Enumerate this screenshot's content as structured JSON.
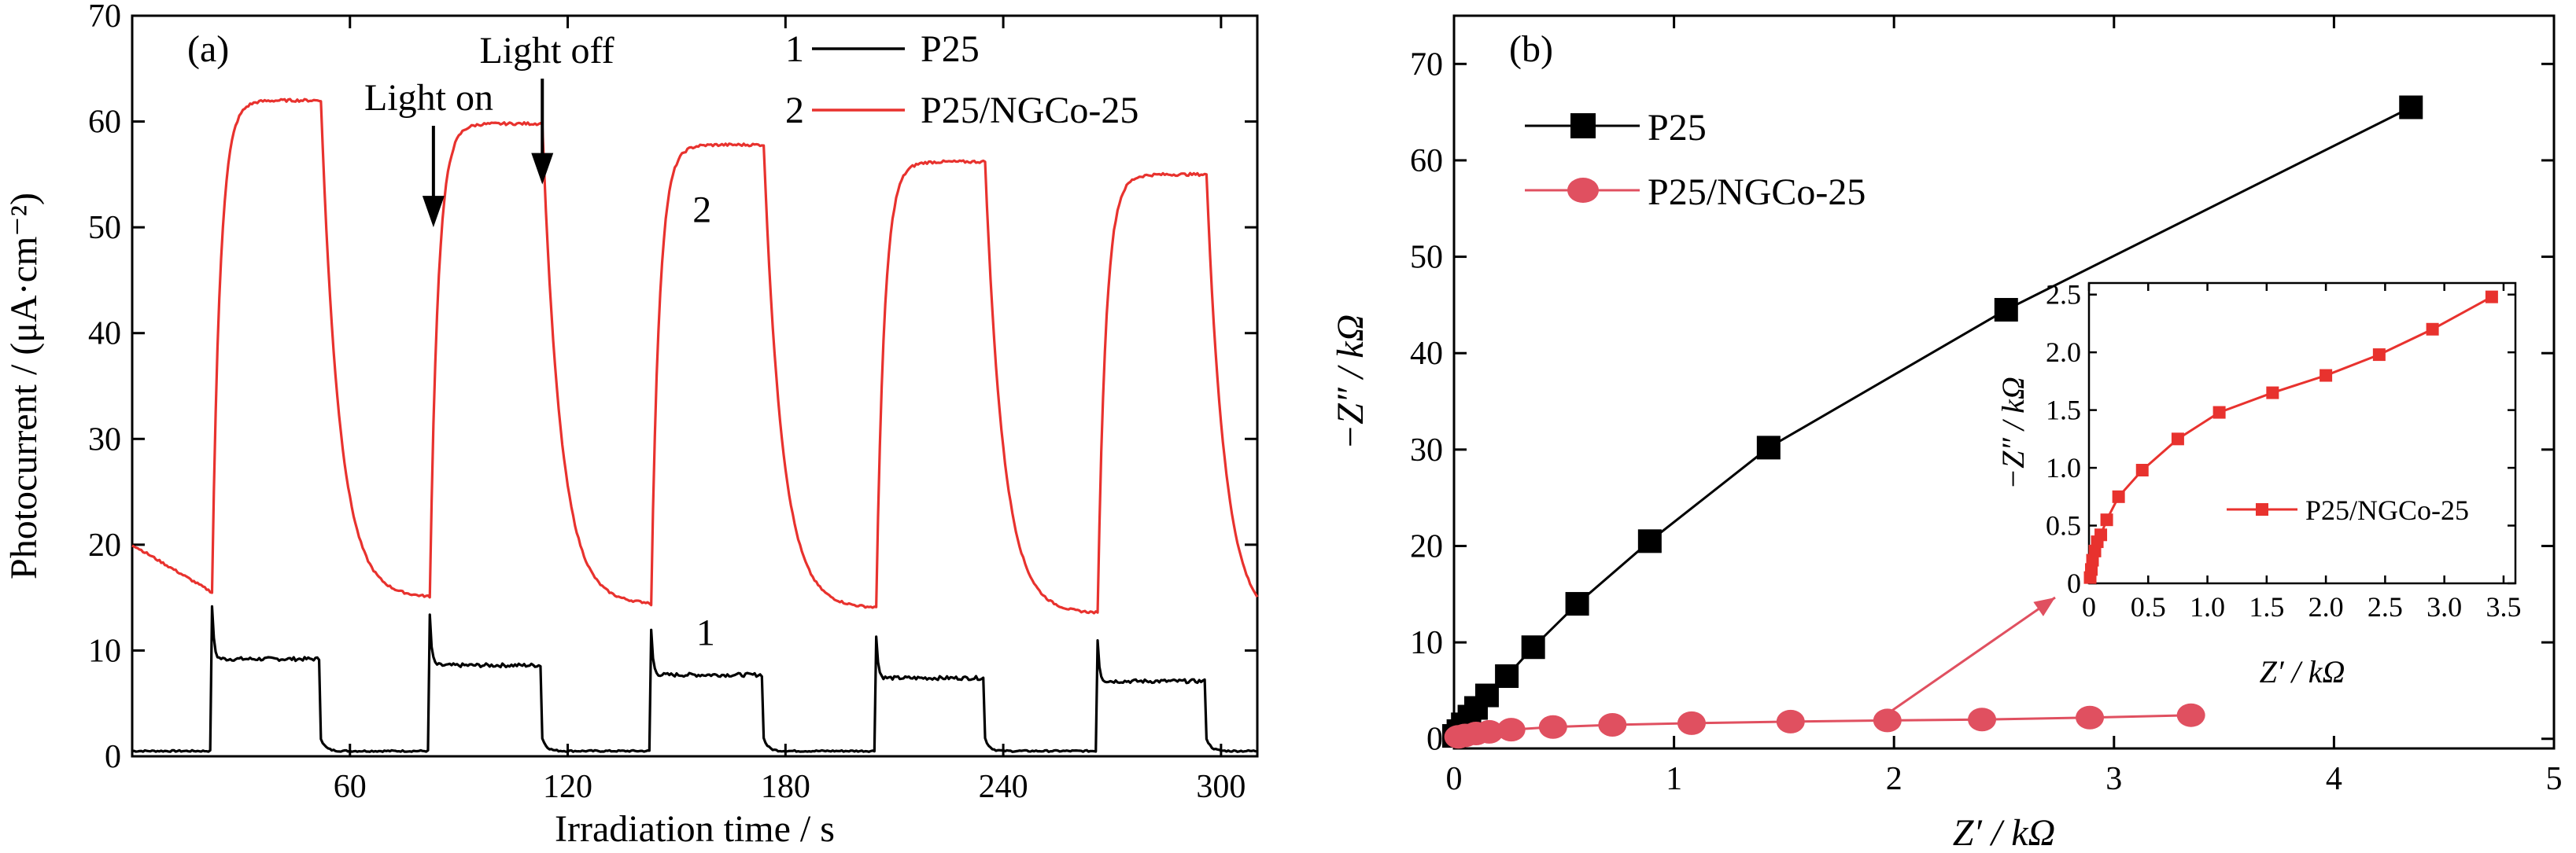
{
  "chart_data": [
    {
      "type": "line",
      "panel_label": "(a)",
      "xlabel": "Irradiation time / s",
      "ylabel": "Photocurrent / (μA·cm⁻²)",
      "xlim": [
        0,
        310
      ],
      "ylim": [
        0,
        70
      ],
      "xticks": [
        60,
        120,
        180,
        240,
        300
      ],
      "yticks": [
        0,
        10,
        20,
        30,
        40,
        50,
        60,
        70
      ],
      "light_on_times": [
        22,
        82,
        143,
        205,
        266
      ],
      "light_off_times": [
        52,
        113,
        174,
        235,
        296
      ],
      "annotations": {
        "light_on": "Light on",
        "light_off": "Light off",
        "curve_1": "1",
        "curve_2": "2"
      },
      "legend": [
        {
          "number": "1",
          "name": "P25",
          "color": "#000000"
        },
        {
          "number": "2",
          "name": "P25/NGCo-25",
          "color": "#e8322e"
        }
      ],
      "series": [
        {
          "name": "P25",
          "color": "#000000",
          "dark_baseline": 0.5,
          "on_plateau": [
            9.2,
            8.6,
            7.7,
            7.4,
            7.1
          ]
        },
        {
          "name": "P25/NGCo-25",
          "color": "#e8322e",
          "start_value": 20.0,
          "dark_before_on": [
            15.5,
            15.0,
            14.4,
            14.0,
            13.5
          ],
          "on_plateau": [
            62.0,
            59.8,
            57.8,
            56.2,
            55.0
          ],
          "end_value": 18.5
        }
      ]
    },
    {
      "type": "scatter",
      "panel_label": "(b)",
      "xlabel": "Z′ / kΩ",
      "ylabel": "−Z″ / kΩ",
      "xlim": [
        0,
        5
      ],
      "ylim": [
        -1,
        75
      ],
      "xticks": [
        0,
        1,
        2,
        3,
        4,
        5
      ],
      "yticks": [
        0,
        10,
        20,
        30,
        40,
        50,
        60,
        70
      ],
      "legend_position": "top-left",
      "series": [
        {
          "name": "P25",
          "color": "#000000",
          "marker": "square",
          "x": [
            0.0,
            0.02,
            0.04,
            0.07,
            0.1,
            0.15,
            0.24,
            0.36,
            0.56,
            0.89,
            1.43,
            2.51,
            4.35
          ],
          "y": [
            0.3,
            0.8,
            1.5,
            2.3,
            3.2,
            4.5,
            6.5,
            9.5,
            14.0,
            20.5,
            30.2,
            44.5,
            65.5
          ]
        },
        {
          "name": "P25/NGCo-25",
          "color": "#e05060",
          "marker": "circle",
          "x": [
            0.02,
            0.05,
            0.1,
            0.16,
            0.26,
            0.45,
            0.72,
            1.08,
            1.53,
            1.97,
            2.4,
            2.89,
            3.35
          ],
          "y": [
            0.2,
            0.35,
            0.55,
            0.72,
            0.95,
            1.22,
            1.45,
            1.62,
            1.78,
            1.9,
            2.0,
            2.2,
            2.45
          ]
        }
      ],
      "inset": {
        "xlabel": "Z′ / kΩ",
        "ylabel": "−Z″ / kΩ",
        "xlim": [
          0,
          3.6
        ],
        "ylim": [
          0,
          2.6
        ],
        "xticks": [
          0,
          0.5,
          1.0,
          1.5,
          2.0,
          2.5,
          3.0,
          3.5
        ],
        "xtick_labels": [
          "0",
          "0.5",
          "1.0",
          "1.5",
          "2.0",
          "2.5",
          "3.0",
          "3.5"
        ],
        "yticks": [
          0,
          0.5,
          1.0,
          1.5,
          2.0,
          2.5
        ],
        "ytick_labels": [
          "0",
          "0.5",
          "1.0",
          "1.5",
          "2.0",
          "2.5"
        ],
        "legend_position": "bottom-right",
        "series": {
          "name": "P25/NGCo-25",
          "color": "#e8322e",
          "marker": "square",
          "x": [
            0.01,
            0.02,
            0.03,
            0.05,
            0.07,
            0.1,
            0.15,
            0.25,
            0.45,
            0.75,
            1.1,
            1.55,
            2.0,
            2.45,
            2.9,
            3.4
          ],
          "y": [
            0.05,
            0.12,
            0.2,
            0.28,
            0.36,
            0.42,
            0.55,
            0.75,
            0.98,
            1.25,
            1.48,
            1.65,
            1.8,
            1.98,
            2.2,
            2.48
          ]
        }
      }
    }
  ]
}
